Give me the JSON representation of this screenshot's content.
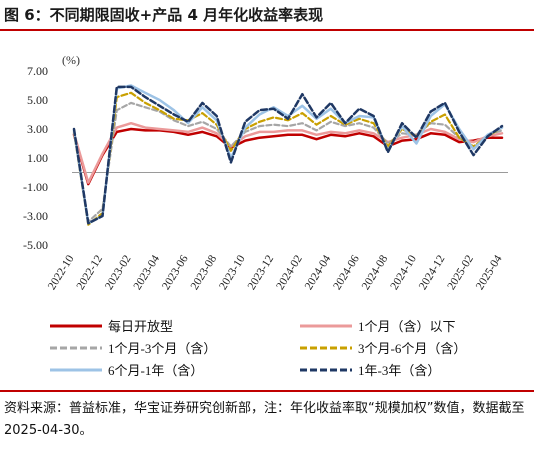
{
  "header": {
    "title": "图 6：不同期限固收+产品 4 月年化收益率表现"
  },
  "footer": {
    "source": "资料来源：普益标准，华宝证券研究创新部，注：年化收益率取“规模加权”数值，数据截至 2025-04-30。"
  },
  "chart_data": {
    "type": "line",
    "title": "",
    "ylabel": "(%)",
    "xlabel": "",
    "ylim": [
      -5,
      7
    ],
    "yticks": [
      "7.00",
      "5.00",
      "3.00",
      "1.00",
      "-1.00",
      "-3.00",
      "-5.00"
    ],
    "grid": false,
    "legend_position": "bottom",
    "x": [
      "2022-10",
      "2022-11",
      "2022-12",
      "2023-01",
      "2023-02",
      "2023-03",
      "2023-04",
      "2023-05",
      "2023-06",
      "2023-07",
      "2023-08",
      "2023-09",
      "2023-10",
      "2023-11",
      "2023-12",
      "2024-01",
      "2024-02",
      "2024-03",
      "2024-04",
      "2024-05",
      "2024-06",
      "2024-07",
      "2024-08",
      "2024-09",
      "2024-10",
      "2024-11",
      "2024-12",
      "2025-01",
      "2025-02",
      "2025-03",
      "2025-04"
    ],
    "xtick_labels": [
      "2022-10",
      "2022-12",
      "2023-02",
      "2023-04",
      "2023-06",
      "2023-08",
      "2023-10",
      "2023-12",
      "2024-02",
      "2024-04",
      "2024-06",
      "2024-08",
      "2024-10",
      "2024-12",
      "2025-02",
      "2025-04"
    ],
    "series": [
      {
        "name": "每日开放型",
        "color": "#c00000",
        "dash": "",
        "width": 2.5,
        "values": [
          2.6,
          -0.8,
          1.2,
          2.8,
          3.0,
          2.9,
          2.9,
          2.8,
          2.6,
          2.8,
          2.5,
          1.7,
          2.2,
          2.4,
          2.5,
          2.6,
          2.6,
          2.3,
          2.6,
          2.5,
          2.7,
          2.5,
          1.8,
          2.2,
          2.3,
          2.7,
          2.6,
          2.1,
          2.2,
          2.4,
          2.4
        ]
      },
      {
        "name": "1个月（含）以下",
        "color": "#eb9a9a",
        "dash": "",
        "width": 2.5,
        "values": [
          2.7,
          -0.7,
          1.3,
          3.1,
          3.4,
          3.1,
          3.0,
          2.9,
          2.8,
          3.1,
          2.7,
          1.8,
          2.5,
          2.8,
          2.8,
          2.9,
          2.9,
          2.6,
          2.8,
          2.7,
          2.9,
          2.7,
          2.1,
          2.4,
          2.6,
          3.0,
          2.8,
          2.3,
          2.1,
          2.5,
          2.7
        ]
      },
      {
        "name": "1个月-3个月（含）",
        "color": "#a6a6a6",
        "dash": "5,3",
        "width": 2.2,
        "values": [
          2.8,
          -3.4,
          -2.5,
          4.3,
          4.8,
          4.5,
          4.2,
          3.6,
          3.2,
          3.5,
          3.0,
          1.8,
          2.8,
          3.2,
          3.3,
          3.2,
          3.4,
          2.9,
          3.5,
          3.2,
          3.4,
          3.1,
          2.0,
          2.7,
          2.6,
          3.4,
          3.3,
          2.4,
          1.7,
          2.6,
          2.9
        ]
      },
      {
        "name": "3个月-6个月（含）",
        "color": "#c9a000",
        "dash": "6,3",
        "width": 2.2,
        "values": [
          2.8,
          -3.6,
          -2.8,
          5.2,
          5.5,
          4.8,
          4.3,
          3.7,
          3.6,
          4.1,
          3.3,
          1.5,
          3.0,
          3.5,
          3.8,
          3.6,
          4.1,
          3.3,
          3.9,
          3.3,
          3.7,
          3.4,
          1.8,
          3.0,
          2.5,
          3.5,
          4.0,
          2.4,
          1.8,
          2.5,
          3.1
        ]
      },
      {
        "name": "6个月-1年（含）",
        "color": "#9dc3e6",
        "dash": "",
        "width": 2.5,
        "values": [
          2.9,
          -3.5,
          -3.0,
          5.8,
          6.0,
          5.5,
          5.0,
          4.3,
          3.4,
          4.5,
          3.6,
          1.0,
          3.1,
          4.0,
          4.5,
          3.9,
          4.6,
          3.7,
          4.4,
          3.4,
          3.9,
          3.8,
          1.5,
          3.2,
          2.0,
          3.9,
          4.7,
          3.0,
          1.6,
          2.6,
          3.1
        ]
      },
      {
        "name": "1年-3年（含）",
        "color": "#1f3864",
        "dash": "6,3",
        "width": 2.5,
        "values": [
          3.0,
          -3.5,
          -3.0,
          5.9,
          5.9,
          5.2,
          4.6,
          4.0,
          3.5,
          4.8,
          3.9,
          0.7,
          3.5,
          4.3,
          4.4,
          3.7,
          5.4,
          3.8,
          4.8,
          3.4,
          4.4,
          3.9,
          1.4,
          3.4,
          2.4,
          4.2,
          4.8,
          2.8,
          1.2,
          2.5,
          3.2
        ]
      }
    ]
  }
}
